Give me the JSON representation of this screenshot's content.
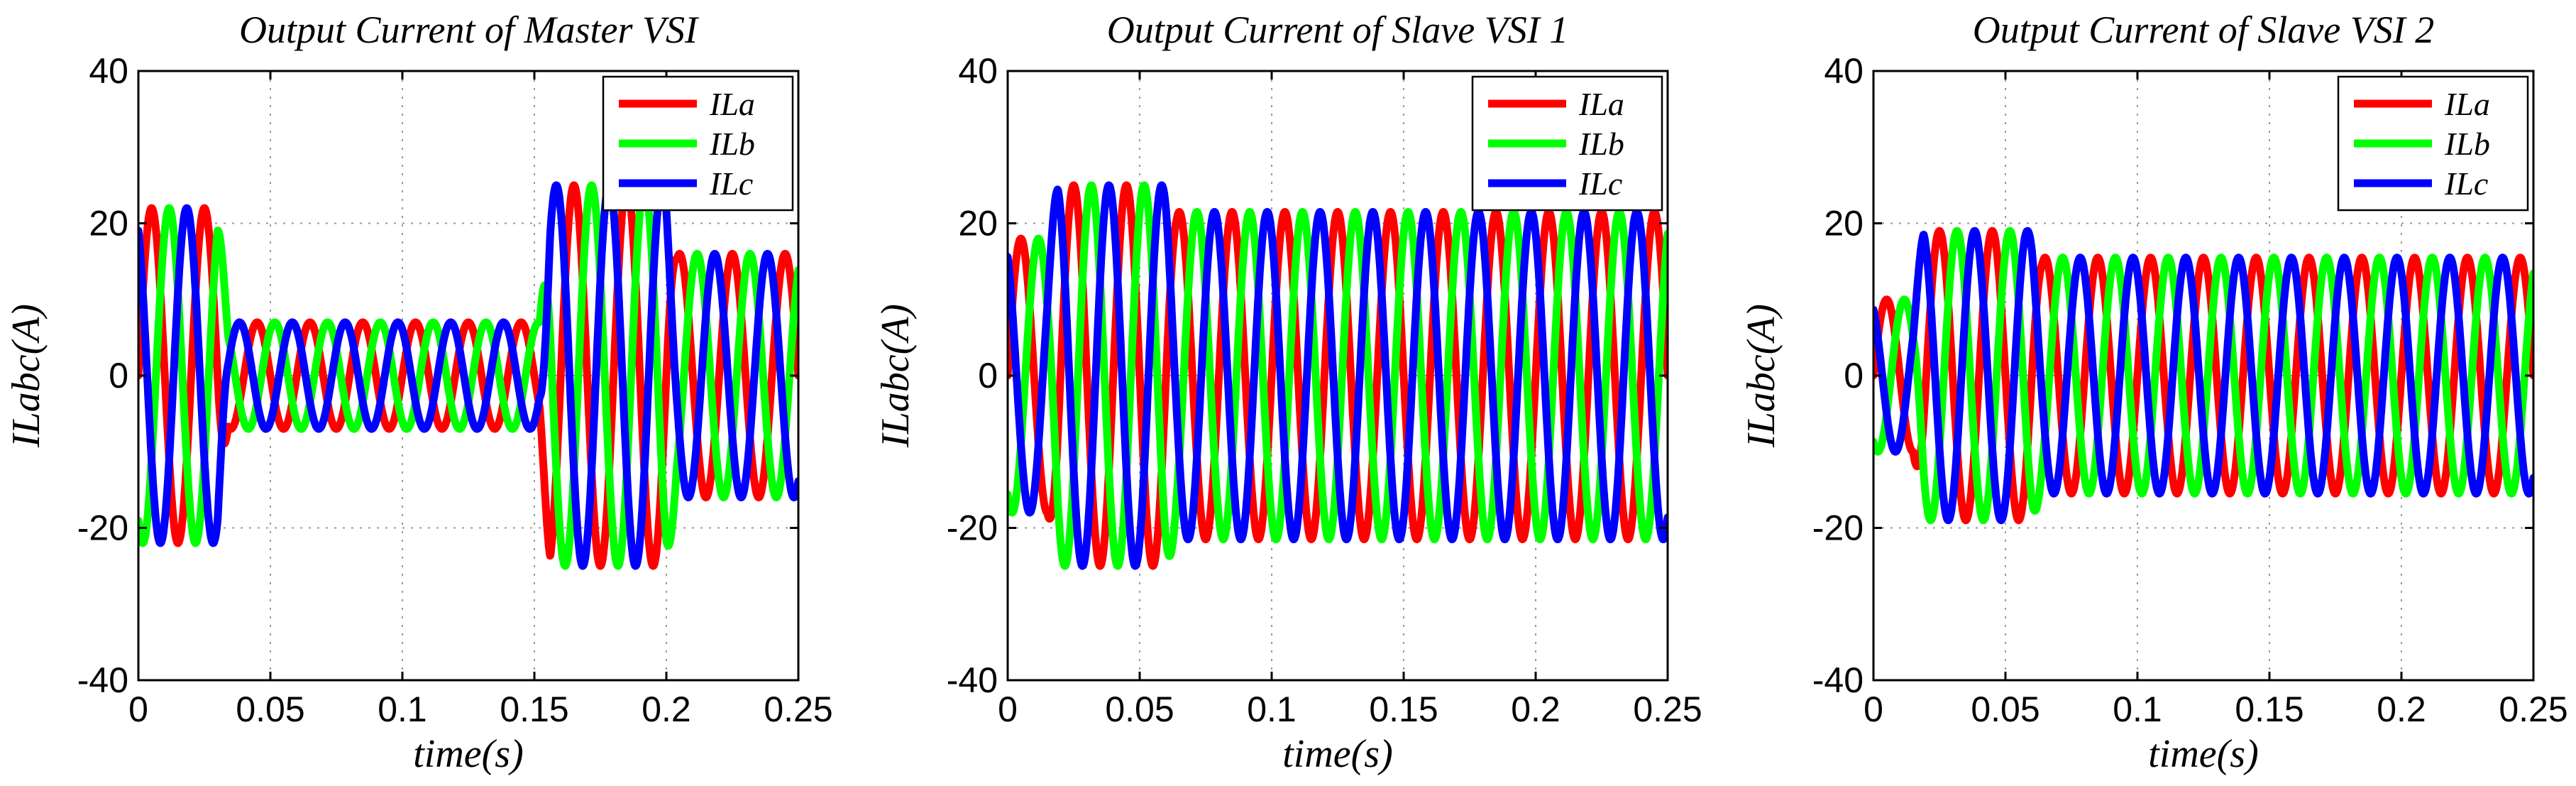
{
  "chart_data": [
    {
      "type": "line",
      "title": "Output Current of Master VSI",
      "xlabel": "time(s)",
      "ylabel": "ILabc(A)",
      "xlim": [
        0,
        0.25
      ],
      "ylim": [
        -40,
        40
      ],
      "xticks": [
        0,
        0.05,
        0.1,
        0.15,
        0.2,
        0.25
      ],
      "xtick_labels": [
        "0",
        "0.05",
        "0.1",
        "0.15",
        "0.2",
        "0.25"
      ],
      "yticks": [
        -40,
        -20,
        0,
        20,
        40
      ],
      "ytick_labels": [
        "-40",
        "-20",
        "0",
        "20",
        "40"
      ],
      "grid": true,
      "legend_position": "top-right",
      "frequency_hz": 50,
      "series": [
        {
          "name": "ILa",
          "color": "#ff0000",
          "phase_deg": 0
        },
        {
          "name": "ILb",
          "color": "#00ff00",
          "phase_deg": -120
        },
        {
          "name": "ILc",
          "color": "#0000ff",
          "phase_deg": 120
        }
      ],
      "segments": [
        {
          "t_start": 0,
          "t_end": 0.03,
          "peak_amplitude": 22
        },
        {
          "t_start": 0.03,
          "t_end": 0.152,
          "peak_amplitude": 7
        },
        {
          "t_start": 0.152,
          "t_end": 0.2,
          "peak_amplitude": 25
        },
        {
          "t_start": 0.2,
          "t_end": 0.25,
          "peak_amplitude": 16
        }
      ]
    },
    {
      "type": "line",
      "title": "Output Current of Slave VSI 1",
      "xlabel": "time(s)",
      "ylabel": "ILabc(A)",
      "xlim": [
        0,
        0.25
      ],
      "ylim": [
        -40,
        40
      ],
      "xticks": [
        0,
        0.05,
        0.1,
        0.15,
        0.2,
        0.25
      ],
      "xtick_labels": [
        "0",
        "0.05",
        "0.1",
        "0.15",
        "0.2",
        "0.25"
      ],
      "yticks": [
        -40,
        -20,
        0,
        20,
        40
      ],
      "ytick_labels": [
        "-40",
        "-20",
        "0",
        "20",
        "40"
      ],
      "grid": true,
      "legend_position": "top-right",
      "frequency_hz": 50,
      "series": [
        {
          "name": "ILa",
          "color": "#ff0000",
          "phase_deg": 0
        },
        {
          "name": "ILb",
          "color": "#00ff00",
          "phase_deg": -120
        },
        {
          "name": "ILc",
          "color": "#0000ff",
          "phase_deg": 120
        }
      ],
      "segments": [
        {
          "t_start": 0,
          "t_end": 0.015,
          "peak_amplitude": 18
        },
        {
          "t_start": 0.015,
          "t_end": 0.06,
          "peak_amplitude": 25
        },
        {
          "t_start": 0.06,
          "t_end": 0.25,
          "peak_amplitude": 21.5
        }
      ]
    },
    {
      "type": "line",
      "title": "Output Current of Slave VSI 2",
      "xlabel": "time(s)",
      "ylabel": "ILabc(A)",
      "xlim": [
        0,
        0.25
      ],
      "ylim": [
        -40,
        40
      ],
      "xticks": [
        0,
        0.05,
        0.1,
        0.15,
        0.2,
        0.25
      ],
      "xtick_labels": [
        "0",
        "0.05",
        "0.1",
        "0.15",
        "0.2",
        "0.25"
      ],
      "yticks": [
        -40,
        -20,
        0,
        20,
        40
      ],
      "ytick_labels": [
        "-40",
        "-20",
        "0",
        "20",
        "40"
      ],
      "grid": true,
      "legend_position": "top-right",
      "frequency_hz": 50,
      "series": [
        {
          "name": "ILa",
          "color": "#ff0000",
          "phase_deg": 0
        },
        {
          "name": "ILb",
          "color": "#00ff00",
          "phase_deg": -120
        },
        {
          "name": "ILc",
          "color": "#0000ff",
          "phase_deg": 120
        }
      ],
      "segments": [
        {
          "t_start": 0,
          "t_end": 0.015,
          "peak_amplitude": 10
        },
        {
          "t_start": 0.015,
          "t_end": 0.06,
          "peak_amplitude": 19
        },
        {
          "t_start": 0.06,
          "t_end": 0.25,
          "peak_amplitude": 15.5
        }
      ]
    }
  ]
}
